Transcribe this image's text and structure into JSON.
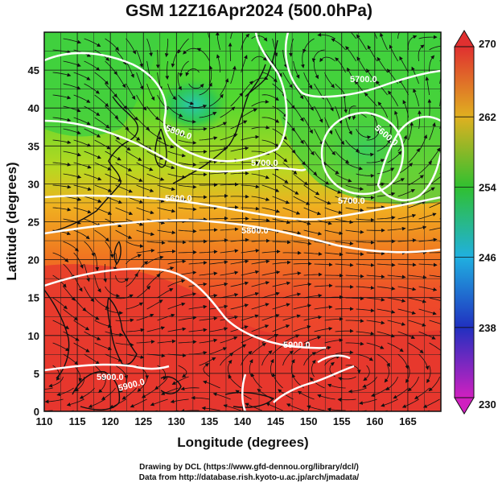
{
  "title": "GSM 12Z16Apr2024 (500.0hPa)",
  "x_axis": {
    "label": "Longitude (degrees)",
    "ticks": [
      "110",
      "115",
      "120",
      "125",
      "130",
      "135",
      "140",
      "145",
      "150",
      "155",
      "160",
      "165"
    ]
  },
  "y_axis": {
    "label": "Latitude (degrees)",
    "ticks": [
      "0",
      "5",
      "10",
      "15",
      "20",
      "25",
      "30",
      "35",
      "40",
      "45"
    ]
  },
  "colorbar": {
    "ticks": [
      "230",
      "238",
      "246",
      "254",
      "262",
      "270"
    ],
    "colors": {
      "min": "#d020c0",
      "low": "#2030c0",
      "mid_low": "#20b0e0",
      "mid": "#30c030",
      "mid_high": "#e0b020",
      "max": "#e03030"
    }
  },
  "contour_labels": [
    "5700.0",
    "5800.0",
    "5700.0",
    "5600.0",
    "5600.0",
    "5700.0",
    "5800.0",
    "5900.0",
    "5900.0",
    "5900.0"
  ],
  "credits": {
    "line1": "Drawing by DCL (https://www.gfd-dennou.org/library/dcl/)",
    "line2": "Data from http://database.rish.kyoto-u.ac.jp/arch/jmadata/"
  }
}
